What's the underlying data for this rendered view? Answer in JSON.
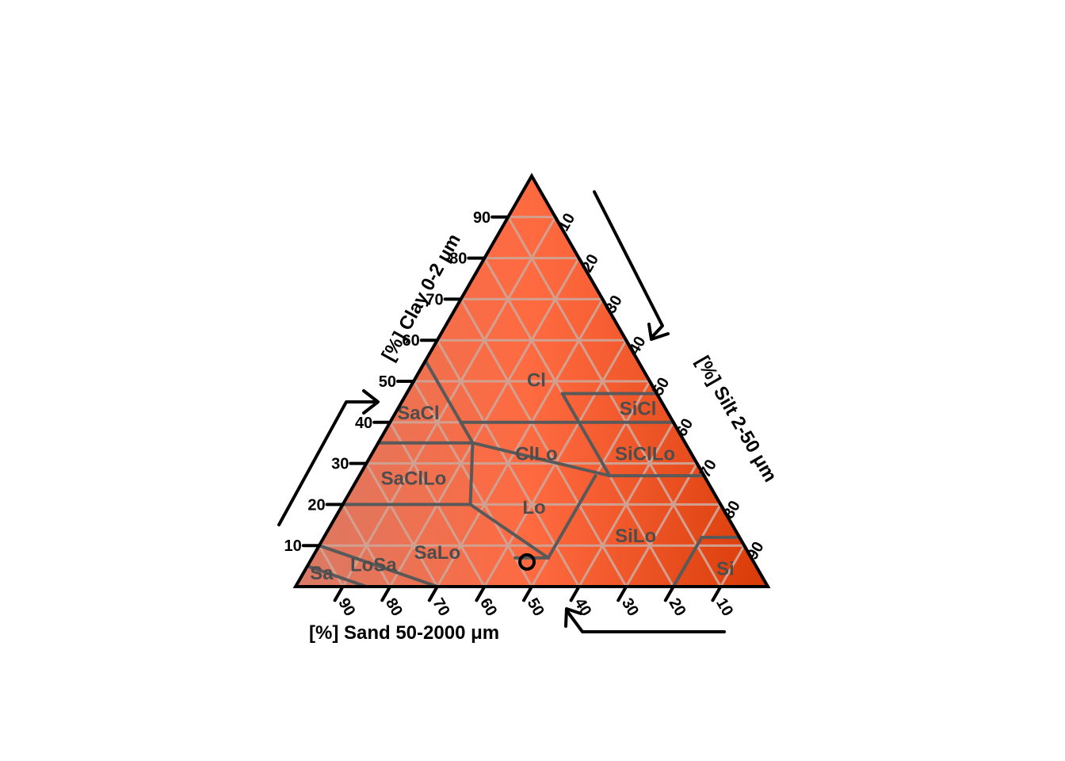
{
  "chart_data": {
    "type": "scatter",
    "subtype": "ternary soil texture triangle",
    "axes": {
      "clay": {
        "label": "[%] Clay 0-2 μm",
        "ticks": [
          "10",
          "20",
          "30",
          "40",
          "50",
          "60",
          "70",
          "80",
          "90"
        ]
      },
      "silt": {
        "label": "[%] Silt 2-50 μm",
        "ticks": [
          "10",
          "20",
          "30",
          "40",
          "50",
          "60",
          "70",
          "80",
          "90"
        ]
      },
      "sand": {
        "label": "[%] Sand 50-2000 μm",
        "ticks": [
          "90",
          "80",
          "70",
          "60",
          "50",
          "40",
          "30",
          "20",
          "10"
        ]
      }
    },
    "grid": true,
    "colors": {
      "fill_left": "#d97a66",
      "fill_top": "#ff6a40",
      "fill_right": "#d83a06",
      "grid": "#d2a090",
      "boundary": "#595959",
      "frame": "#000000",
      "label": "#4d4d4d"
    },
    "classes": [
      {
        "name": "Cl",
        "centroid": {
          "sand": 24,
          "silt": 26,
          "clay": 50
        }
      },
      {
        "name": "SiCl",
        "centroid": {
          "sand": 6,
          "silt": 51,
          "clay": 43
        }
      },
      {
        "name": "SaCl",
        "centroid": {
          "sand": 53,
          "silt": 5,
          "clay": 42
        }
      },
      {
        "name": "ClLo",
        "centroid": {
          "sand": 33,
          "silt": 35,
          "clay": 32
        }
      },
      {
        "name": "SiClLo",
        "centroid": {
          "sand": 10,
          "silt": 58,
          "clay": 32
        }
      },
      {
        "name": "SaClLo",
        "centroid": {
          "sand": 62,
          "silt": 12,
          "clay": 26
        }
      },
      {
        "name": "Lo",
        "centroid": {
          "sand": 40,
          "silt": 41,
          "clay": 19
        }
      },
      {
        "name": "SiLo",
        "centroid": {
          "sand": 22,
          "silt": 66,
          "clay": 12
        }
      },
      {
        "name": "SaLo",
        "centroid": {
          "sand": 66,
          "silt": 26,
          "clay": 8
        }
      },
      {
        "name": "Si",
        "centroid": {
          "sand": 7,
          "silt": 89,
          "clay": 4
        }
      },
      {
        "name": "LoSa",
        "centroid": {
          "sand": 81,
          "silt": 14,
          "clay": 5
        }
      },
      {
        "name": "Sa",
        "centroid": {
          "sand": 93,
          "silt": 4,
          "clay": 3
        }
      }
    ],
    "points": [
      {
        "sand": 48,
        "silt": 46,
        "clay": 6
      }
    ]
  }
}
